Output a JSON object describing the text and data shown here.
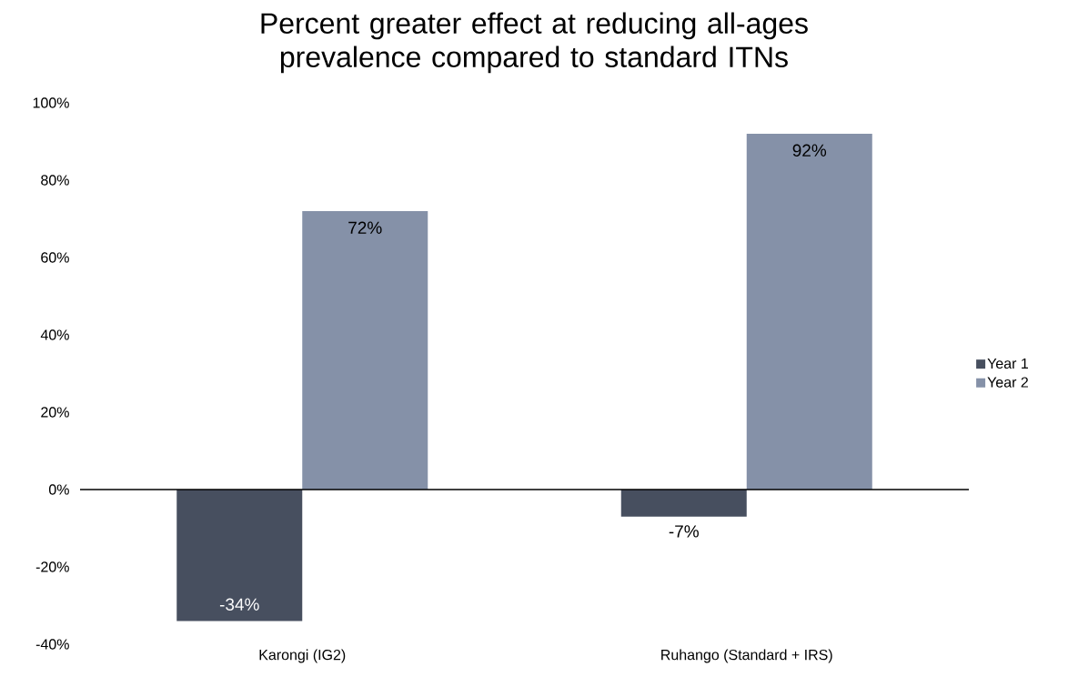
{
  "chart_data": {
    "type": "bar",
    "title": "Percent greater effect at reducing all-ages prevalence compared to standard ITNs",
    "categories": [
      "Karongi (IG2)",
      "Ruhango (Standard + IRS)"
    ],
    "series": [
      {
        "name": "Year 1",
        "color": "#474f5f",
        "values": [
          -34,
          -7
        ],
        "value_labels": [
          "-34%",
          "-7%"
        ]
      },
      {
        "name": "Year 2",
        "color": "#8591a8",
        "values": [
          72,
          92
        ],
        "value_labels": [
          "72%",
          "92%"
        ]
      }
    ],
    "ylim": [
      -40,
      100
    ],
    "yticks": [
      {
        "value": -40,
        "label": "-40%"
      },
      {
        "value": -20,
        "label": "-20%"
      },
      {
        "value": 0,
        "label": "0%"
      },
      {
        "value": 20,
        "label": "20%"
      },
      {
        "value": 40,
        "label": "40%"
      },
      {
        "value": 60,
        "label": "60%"
      },
      {
        "value": 80,
        "label": "80%"
      },
      {
        "value": 100,
        "label": "100%"
      }
    ],
    "legend": "right"
  }
}
